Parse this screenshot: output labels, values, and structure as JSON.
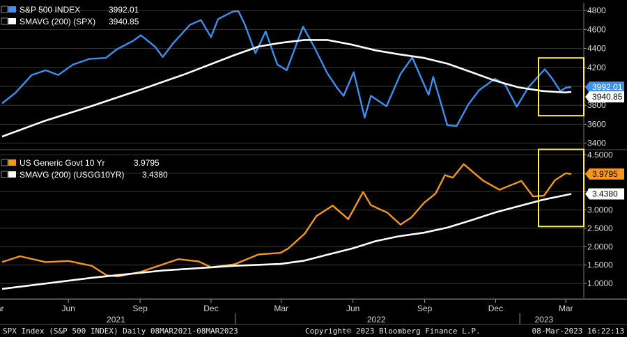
{
  "colors": {
    "background": "#000000",
    "spx": "#3d8ff0",
    "yield": "#f5961e",
    "sma": "#ffffff",
    "highlight_box": "#ffee55",
    "grid": "#3a3a3a",
    "axis_text": "#d9d9d9"
  },
  "chart_data": [
    {
      "type": "line",
      "legend": [
        {
          "label": "S&P 500 INDEX",
          "value": "3992.01"
        },
        {
          "label": "SMAVG (200) (SPX)",
          "value": "3940.85"
        }
      ],
      "ylim": [
        3300,
        4900
      ],
      "yticks": [
        "4800",
        "4600",
        "4400",
        "4200",
        "4000",
        "3800",
        "3600",
        "3400"
      ],
      "last_value_tags": [
        "3992.01",
        "3940.85"
      ],
      "grid": true,
      "highlight_box": {
        "x_from": "2023-01-25",
        "x_to": "2023-03-08",
        "y_from": 3690,
        "y_to": 4300
      },
      "series": [
        {
          "name": "S&P 500 INDEX",
          "x": [
            "2021-03-08",
            "2021-03-25",
            "2021-04-15",
            "2021-05-03",
            "2021-05-19",
            "2021-06-07",
            "2021-06-28",
            "2021-07-19",
            "2021-08-02",
            "2021-08-23",
            "2021-09-02",
            "2021-09-20",
            "2021-09-30",
            "2021-10-14",
            "2021-11-04",
            "2021-11-18",
            "2021-12-01",
            "2021-12-10",
            "2021-12-29",
            "2022-01-05",
            "2022-01-13",
            "2022-01-27",
            "2022-02-09",
            "2022-02-24",
            "2022-03-08",
            "2022-03-29",
            "2022-04-12",
            "2022-04-29",
            "2022-05-12",
            "2022-05-20",
            "2022-06-02",
            "2022-06-16",
            "2022-06-24",
            "2022-07-14",
            "2022-08-01",
            "2022-08-16",
            "2022-09-06",
            "2022-09-12",
            "2022-09-30",
            "2022-10-12",
            "2022-10-27",
            "2022-11-10",
            "2022-11-30",
            "2022-12-13",
            "2022-12-28",
            "2023-01-12",
            "2023-02-02",
            "2023-02-10",
            "2023-02-22",
            "2023-03-01",
            "2023-03-08"
          ],
          "values": [
            3820,
            3930,
            4120,
            4170,
            4120,
            4230,
            4290,
            4300,
            4390,
            4480,
            4540,
            4420,
            4310,
            4460,
            4650,
            4700,
            4520,
            4710,
            4790,
            4795,
            4660,
            4350,
            4580,
            4230,
            4170,
            4630,
            4420,
            4140,
            3980,
            3900,
            4150,
            3670,
            3900,
            3790,
            4130,
            4305,
            3910,
            4100,
            3590,
            3580,
            3810,
            3960,
            4080,
            4020,
            3785,
            3990,
            4180,
            4100,
            3950,
            3985,
            3992.01
          ]
        },
        {
          "name": "SMAVG (200) (SPX)",
          "x": [
            "2021-03-08",
            "2021-04-30",
            "2021-06-30",
            "2021-08-31",
            "2021-10-29",
            "2021-12-31",
            "2022-01-31",
            "2022-03-01",
            "2022-03-31",
            "2022-04-29",
            "2022-05-31",
            "2022-06-30",
            "2022-07-29",
            "2022-08-31",
            "2022-09-30",
            "2022-10-31",
            "2022-11-30",
            "2022-12-30",
            "2023-01-31",
            "2023-02-28",
            "2023-03-08"
          ],
          "values": [
            3470,
            3630,
            3790,
            3960,
            4130,
            4330,
            4420,
            4460,
            4490,
            4490,
            4440,
            4380,
            4340,
            4300,
            4240,
            4150,
            4060,
            3990,
            3950,
            3935,
            3940.85
          ]
        }
      ]
    },
    {
      "type": "line",
      "legend": [
        {
          "label": "US Generic Govt 10 Yr",
          "value": "3.9795"
        },
        {
          "label": "SMAVG (200) (USGG10YR)",
          "value": "3.4380"
        }
      ],
      "ylim": [
        0.65,
        4.7
      ],
      "yticks": [
        "4.5000",
        "4.0000",
        "3.5000",
        "3.0000",
        "2.5000",
        "2.0000",
        "1.5000",
        "1.0000"
      ],
      "last_value_tags": [
        "3.9795",
        "3.4380"
      ],
      "grid": true,
      "highlight_box": {
        "x_from": "2023-01-25",
        "x_to": "2023-03-08",
        "y_from": 2.55,
        "y_to": 4.65
      },
      "series": [
        {
          "name": "US Generic Govt 10 Yr",
          "x": [
            "2021-03-08",
            "2021-03-31",
            "2021-05-03",
            "2021-06-01",
            "2021-07-01",
            "2021-07-20",
            "2021-08-04",
            "2021-09-01",
            "2021-10-20",
            "2021-11-15",
            "2021-12-01",
            "2021-12-31",
            "2022-01-31",
            "2022-02-28",
            "2022-03-10",
            "2022-03-31",
            "2022-04-15",
            "2022-05-06",
            "2022-05-26",
            "2022-06-14",
            "2022-06-24",
            "2022-07-15",
            "2022-08-01",
            "2022-08-15",
            "2022-08-31",
            "2022-09-15",
            "2022-09-27",
            "2022-10-07",
            "2022-10-21",
            "2022-11-01",
            "2022-11-15",
            "2022-12-06",
            "2022-12-21",
            "2023-01-03",
            "2023-01-18",
            "2023-02-01",
            "2023-02-15",
            "2023-03-01",
            "2023-03-08"
          ],
          "values": [
            1.58,
            1.74,
            1.58,
            1.61,
            1.48,
            1.22,
            1.19,
            1.31,
            1.66,
            1.6,
            1.44,
            1.52,
            1.79,
            1.83,
            1.95,
            2.35,
            2.83,
            3.12,
            2.75,
            3.49,
            3.13,
            2.93,
            2.6,
            2.8,
            3.19,
            3.45,
            3.95,
            3.88,
            4.25,
            4.05,
            3.8,
            3.55,
            3.68,
            3.79,
            3.37,
            3.39,
            3.81,
            4.0,
            3.9795
          ]
        },
        {
          "name": "SMAVG (200) (USGG10YR)",
          "x": [
            "2021-03-08",
            "2021-06-30",
            "2021-09-30",
            "2021-12-31",
            "2022-02-28",
            "2022-03-31",
            "2022-04-29",
            "2022-05-31",
            "2022-06-30",
            "2022-07-29",
            "2022-08-31",
            "2022-09-30",
            "2022-10-31",
            "2022-11-30",
            "2022-12-30",
            "2023-01-31",
            "2023-03-08"
          ],
          "values": [
            0.85,
            1.15,
            1.35,
            1.48,
            1.53,
            1.62,
            1.78,
            1.95,
            2.15,
            2.28,
            2.38,
            2.52,
            2.72,
            2.93,
            3.1,
            3.28,
            3.438
          ]
        }
      ]
    }
  ],
  "x_axis": {
    "months": [
      {
        "label": "Mar",
        "date": "2021-03-01"
      },
      {
        "label": "Jun",
        "date": "2021-06-01"
      },
      {
        "label": "Sep",
        "date": "2021-09-01"
      },
      {
        "label": "Dec",
        "date": "2021-12-01"
      },
      {
        "label": "Mar",
        "date": "2022-03-01"
      },
      {
        "label": "Jun",
        "date": "2022-06-01"
      },
      {
        "label": "Sep",
        "date": "2022-09-01"
      },
      {
        "label": "Dec",
        "date": "2022-12-01"
      },
      {
        "label": "Mar",
        "date": "2023-03-01"
      }
    ],
    "years": [
      {
        "label": "2021",
        "date": "2021-08-01"
      },
      {
        "label": "2022",
        "date": "2022-07-01"
      },
      {
        "label": "2023",
        "date": "2023-02-01"
      }
    ],
    "year_dividers": [
      "2022-01-01",
      "2023-01-01"
    ]
  },
  "footer": {
    "left": "SPX Index (S&P 500 INDEX)  Daily 08MAR2021-08MAR2023",
    "center": "Copyright© 2023 Bloomberg Finance L.P.",
    "right": "08-Mar-2023 16:22:13"
  }
}
